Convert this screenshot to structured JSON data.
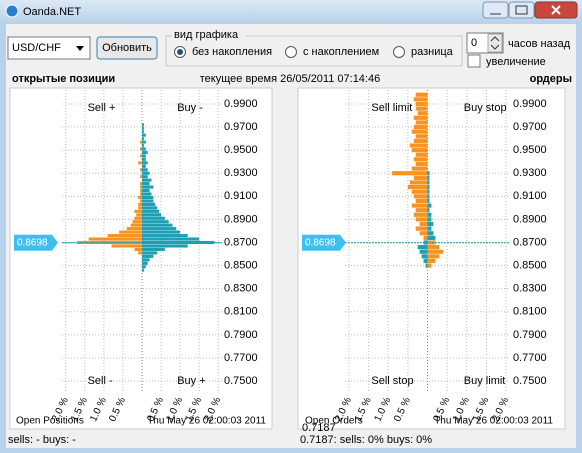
{
  "window": {
    "title": "Oanda.NET"
  },
  "toolbar": {
    "symbol": "USD/CHF",
    "refresh": "Обновить",
    "chart_mode": {
      "title": "вид графика",
      "options": [
        "без накопления",
        "с накоплением",
        "разница"
      ],
      "selected": 0
    },
    "hours": {
      "value": 0,
      "label": "часов назад"
    },
    "zoom": {
      "label": "увеличение",
      "checked": false
    }
  },
  "header": {
    "left": "открытые позиции",
    "time": "текущее время 26/05/2011 07:14:46",
    "right": "ордеры"
  },
  "charts": [
    {
      "type": "bar",
      "orientation": "horizontal",
      "quadrant_labels": [
        "Sell +",
        "Buy -",
        "Sell -",
        "Buy +"
      ],
      "footer_left": "Open Positions",
      "footer_right": "Thu May 26 02:00:03 2011",
      "price": 0.8698,
      "levels": [
        0.846,
        0.849,
        0.852,
        0.855,
        0.858,
        0.861,
        0.864,
        0.867,
        0.87,
        0.873,
        0.876,
        0.879,
        0.882,
        0.885,
        0.888,
        0.891,
        0.894,
        0.897,
        0.9,
        0.903,
        0.906,
        0.909,
        0.912,
        0.915,
        0.918,
        0.921,
        0.924,
        0.927,
        0.93,
        0.933,
        0.936,
        0.939,
        0.942,
        0.945,
        0.948,
        0.951,
        0.954,
        0.957,
        0.96,
        0.963,
        0.966,
        0.969,
        0.972
      ],
      "series": [
        {
          "color": "#1ea0b4",
          "values": [
            0.05,
            0.1,
            0.15,
            0.2,
            0.3,
            0.4,
            0.6,
            1.2,
            1.9,
            1.5,
            1.2,
            1.0,
            0.9,
            0.8,
            0.7,
            0.6,
            0.5,
            0.45,
            0.4,
            0.35,
            0.3,
            0.3,
            0.25,
            0.2,
            0.3,
            0.2,
            0.25,
            0.15,
            0.2,
            0.15,
            0.1,
            0.15,
            0.1,
            0.1,
            0.15,
            0.1,
            0.05,
            0.1,
            0.05,
            0.1,
            0.05,
            0.05,
            0.05
          ]
        },
        {
          "color": "#f7931e",
          "values": [
            0,
            0,
            0,
            0,
            0,
            -0.1,
            -0.2,
            -0.8,
            -1.7,
            -1.4,
            -0.9,
            -0.6,
            -0.4,
            -0.3,
            -0.25,
            -0.2,
            -0.15,
            -0.2,
            -0.1,
            -0.1,
            -0.05,
            -0.1,
            -0.05,
            -0.05,
            -0.05,
            -0.05,
            0,
            -0.05,
            0,
            -0.05,
            0,
            -0.1,
            0,
            -0.05,
            0,
            -0.05,
            0,
            -0.05,
            0,
            0,
            0,
            0,
            0
          ]
        }
      ],
      "xlim": [
        -2.1,
        2.1
      ],
      "xticks": [
        {
          "value": -2,
          "label": "2.0 %"
        },
        {
          "value": -1.5,
          "label": "1.5 %"
        },
        {
          "value": -1,
          "label": "1.0 %"
        },
        {
          "value": -0.5,
          "label": "0.5 %"
        },
        {
          "value": 0.5,
          "label": "0.5 %"
        },
        {
          "value": 1,
          "label": "1.0 %"
        },
        {
          "value": 1.5,
          "label": "1.5 %"
        },
        {
          "value": 2,
          "label": "2.0 %"
        }
      ],
      "ylim": [
        0.7405,
        1.0021
      ],
      "yticks": [
        {
          "value": 0.99,
          "label": "0.9900"
        },
        {
          "value": 0.97,
          "label": "0.9700"
        },
        {
          "value": 0.95,
          "label": "0.9500"
        },
        {
          "value": 0.93,
          "label": "0.9300"
        },
        {
          "value": 0.91,
          "label": "0.9100"
        },
        {
          "value": 0.89,
          "label": "0.8900"
        },
        {
          "value": 0.87,
          "label": "0.8700"
        },
        {
          "value": 0.85,
          "label": "0.8500"
        },
        {
          "value": 0.83,
          "label": "0.8300"
        },
        {
          "value": 0.81,
          "label": "0.8100"
        },
        {
          "value": 0.79,
          "label": "0.7900"
        },
        {
          "value": 0.77,
          "label": "0.7700"
        },
        {
          "value": 0.75,
          "label": "0.7500"
        }
      ],
      "grid": true
    },
    {
      "type": "bar",
      "orientation": "horizontal",
      "quadrant_labels": [
        "Sell limit",
        "Buy stop",
        "Sell stop",
        "Buy limit"
      ],
      "footer_left": "Open Orders",
      "footer_right": "Thu May 26 02:00:03 2011",
      "price": 0.8698,
      "cursor": 0.7187,
      "levels": [
        0.85,
        0.854,
        0.858,
        0.862,
        0.866,
        0.87,
        0.874,
        0.878,
        0.882,
        0.886,
        0.89,
        0.894,
        0.898,
        0.902,
        0.906,
        0.91,
        0.914,
        0.918,
        0.922,
        0.926,
        0.93,
        0.934,
        0.938,
        0.942,
        0.946,
        0.95,
        0.954,
        0.958,
        0.962,
        0.966,
        0.97,
        0.974,
        0.978,
        0.982,
        0.986,
        0.99,
        0.994,
        0.998
      ],
      "series": [
        {
          "color": "#1ea0b4",
          "values": [
            -0.05,
            -0.1,
            -0.15,
            -0.2,
            -0.25,
            -0.1,
            0.2,
            0.15,
            0.1,
            0.15,
            0.1,
            0.1,
            0.05,
            0.1,
            0.05,
            0.05,
            0.05,
            0.05,
            0.05,
            0.05,
            0.05,
            0,
            0,
            0,
            0,
            0,
            0,
            0,
            0,
            0,
            0,
            0,
            0,
            0,
            0,
            0,
            0,
            0
          ]
        },
        {
          "color": "#f7931e",
          "values": [
            0.1,
            0.2,
            0.3,
            0.4,
            0.3,
            0.2,
            -0.1,
            -0.2,
            -0.3,
            -0.2,
            -0.3,
            -0.35,
            -0.3,
            -0.4,
            -0.3,
            -0.35,
            -0.4,
            -0.5,
            -0.45,
            -0.35,
            -0.9,
            -0.4,
            -0.3,
            -0.35,
            -0.3,
            -0.4,
            -0.45,
            -0.35,
            -0.3,
            -0.4,
            -0.35,
            -0.3,
            -0.35,
            -0.25,
            -0.3,
            -0.3,
            -0.35,
            -0.3
          ]
        }
      ],
      "xlim": [
        -2.1,
        2.1
      ],
      "xticks": [
        {
          "value": -2,
          "label": "2.0 %"
        },
        {
          "value": -1.5,
          "label": "1.5 %"
        },
        {
          "value": -1,
          "label": "1.0 %"
        },
        {
          "value": -0.5,
          "label": "0.5 %"
        },
        {
          "value": 0.5,
          "label": "0.5 %"
        },
        {
          "value": 1,
          "label": "1.0 %"
        },
        {
          "value": 1.5,
          "label": "1.5 %"
        },
        {
          "value": 2,
          "label": "2.0 %"
        }
      ],
      "ylim": [
        0.7405,
        1.0021
      ],
      "yticks": [
        {
          "value": 0.99,
          "label": "0.9900"
        },
        {
          "value": 0.97,
          "label": "0.9700"
        },
        {
          "value": 0.95,
          "label": "0.9500"
        },
        {
          "value": 0.93,
          "label": "0.9300"
        },
        {
          "value": 0.91,
          "label": "0.9100"
        },
        {
          "value": 0.89,
          "label": "0.8900"
        },
        {
          "value": 0.87,
          "label": "0.8700"
        },
        {
          "value": 0.85,
          "label": "0.8500"
        },
        {
          "value": 0.83,
          "label": "0.8300"
        },
        {
          "value": 0.81,
          "label": "0.8100"
        },
        {
          "value": 0.79,
          "label": "0.7900"
        },
        {
          "value": 0.77,
          "label": "0.7700"
        },
        {
          "value": 0.75,
          "label": "0.7500"
        }
      ],
      "grid": true
    }
  ],
  "status": {
    "left": "sells: - buys: -",
    "right": "0.7187:  sells: 0%  buys: 0%"
  }
}
